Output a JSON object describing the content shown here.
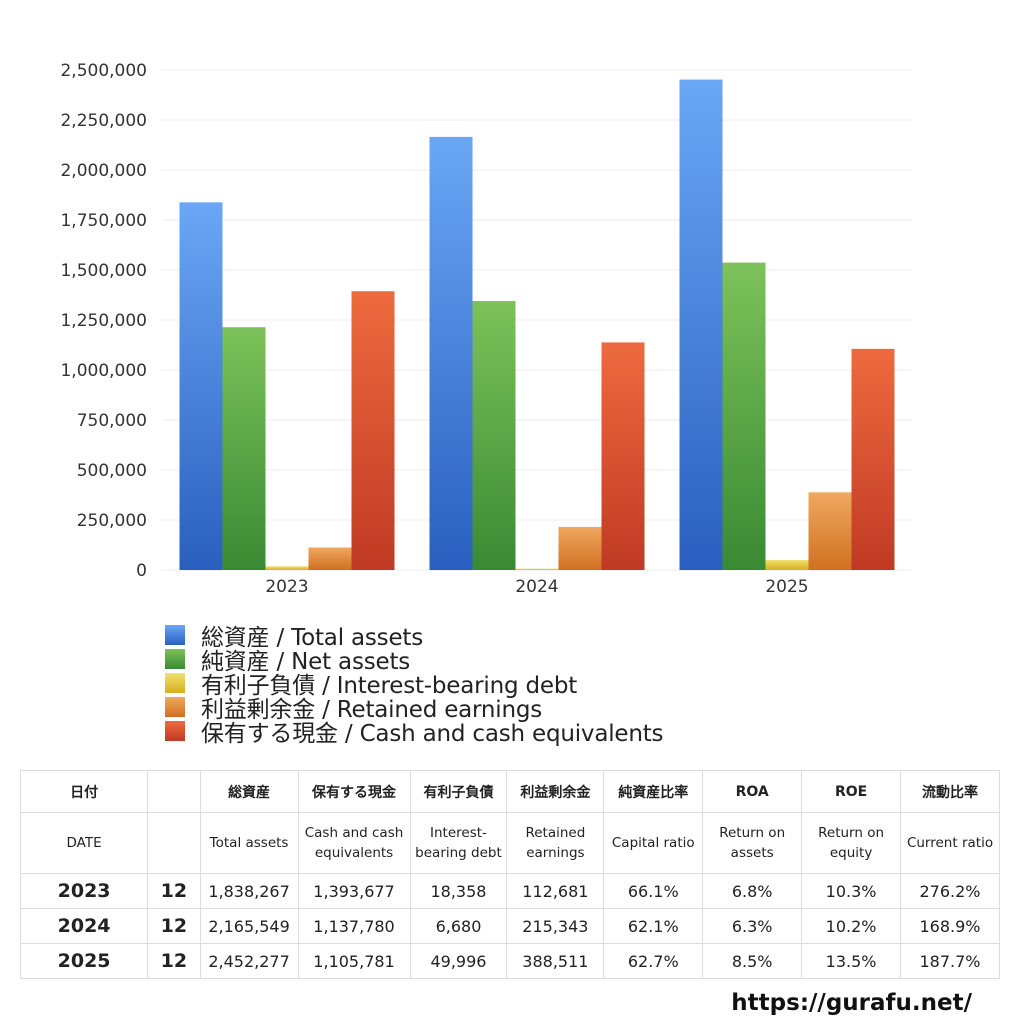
{
  "chart_data": {
    "type": "bar",
    "categories": [
      "2023",
      "2024",
      "2025"
    ],
    "ylim": [
      0,
      2500000
    ],
    "yticks": [
      "0",
      "250,000",
      "500,000",
      "750,000",
      "1,000,000",
      "1,250,000",
      "1,500,000",
      "1,750,000",
      "2,000,000",
      "2,250,000",
      "2,500,000"
    ],
    "grid": true,
    "legend_position": "bottom",
    "series": [
      {
        "name": "総資産 / Total assets",
        "values": [
          1838267,
          2165549,
          2452277
        ],
        "color": "#4a86e0",
        "color_top": "#6aa7f5",
        "color_bottom": "#2a5fbf"
      },
      {
        "name": "純資産 / Net assets",
        "values": [
          1214000,
          1345000,
          1537000
        ],
        "color": "#5aaa46",
        "color_top": "#7dc25a",
        "color_bottom": "#3a8a34"
      },
      {
        "name": "有利子負債 / Interest-bearing debt",
        "values": [
          18358,
          6680,
          49996
        ],
        "color": "#e8d040",
        "color_top": "#f2e070",
        "color_bottom": "#d4b020"
      },
      {
        "name": "利益剰余金 / Retained earnings",
        "values": [
          112681,
          215343,
          388511
        ],
        "color": "#e68e3a",
        "color_top": "#f0a860",
        "color_bottom": "#d07020"
      },
      {
        "name": "保有する現金 /  Cash and cash equivalents",
        "values": [
          1393677,
          1137780,
          1105781
        ],
        "color": "#e0502e",
        "color_top": "#ee6a3e",
        "color_bottom": "#c03a24"
      }
    ]
  },
  "table": {
    "header_jp": [
      "日付",
      "",
      "総資産",
      "保有する現金",
      "有利子負債",
      "利益剰余金",
      "純資産比率",
      "ROA",
      "ROE",
      "流動比率"
    ],
    "header_en": [
      "DATE",
      "",
      "Total assets",
      "Cash and cash equivalents",
      "Interest-bearing debt",
      "Retained earnings",
      "Capital ratio",
      "Return on assets",
      "Return on equity",
      "Current ratio"
    ],
    "rows": [
      [
        "2023",
        "12",
        "1,838,267",
        "1,393,677",
        "18,358",
        "112,681",
        "66.1%",
        "6.8%",
        "10.3%",
        "276.2%"
      ],
      [
        "2024",
        "12",
        "2,165,549",
        "1,137,780",
        "6,680",
        "215,343",
        "62.1%",
        "6.3%",
        "10.2%",
        "168.9%"
      ],
      [
        "2025",
        "12",
        "2,452,277",
        "1,105,781",
        "49,996",
        "388,511",
        "62.7%",
        "8.5%",
        "13.5%",
        "187.7%"
      ]
    ]
  },
  "footer": {
    "url": "https://gurafu.net/"
  }
}
